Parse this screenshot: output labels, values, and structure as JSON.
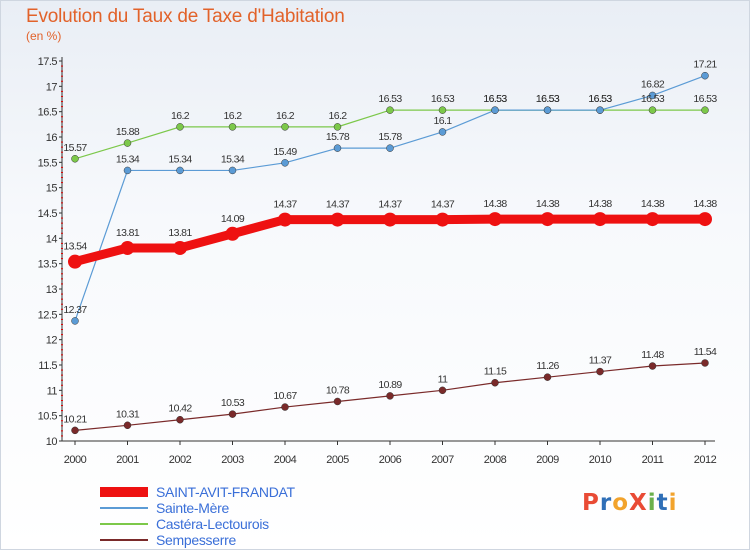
{
  "header": {
    "title": "Evolution du Taux de Taxe d'Habitation",
    "subtitle": "(en %)"
  },
  "logo": {
    "text": "ProXiti",
    "letter_colors": [
      "#e94b35",
      "#2f6fb7",
      "#f2a32c",
      "#e94b35",
      "#6ab04c",
      "#2f6fb7",
      "#f2a32c"
    ]
  },
  "chart_data": {
    "type": "line",
    "title": "Evolution du Taux de Taxe d'Habitation",
    "subtitle": "(en %)",
    "xlabel": "",
    "ylabel": "",
    "x": [
      "2000",
      "2001",
      "2002",
      "2003",
      "2004",
      "2005",
      "2006",
      "2007",
      "2008",
      "2009",
      "2010",
      "2011",
      "2012"
    ],
    "ylim": [
      10,
      17.5
    ],
    "yticks": [
      "10",
      "10.5",
      "11",
      "11.5",
      "12",
      "12.5",
      "13",
      "13.5",
      "14",
      "14.5",
      "15",
      "15.5",
      "16",
      "16.5",
      "17",
      "17.5"
    ],
    "grid": false,
    "legend_position": "bottom-left",
    "series": [
      {
        "name": "SAINT-AVIT-FRANDAT",
        "color": "#ee1111",
        "values": [
          13.54,
          13.81,
          13.81,
          14.09,
          14.37,
          14.37,
          14.37,
          14.37,
          14.38,
          14.38,
          14.38,
          14.38,
          14.38
        ],
        "labels": [
          "13.54",
          "13.81",
          "13.81",
          "14.09",
          "14.37",
          "14.37",
          "14.37",
          "14.37",
          "14.38",
          "14.38",
          "14.38",
          "14.38",
          "14.38"
        ]
      },
      {
        "name": "Sainte-Mère",
        "color": "#5b9bd5",
        "values": [
          12.37,
          15.34,
          15.34,
          15.34,
          15.49,
          15.78,
          15.78,
          16.1,
          16.53,
          16.53,
          16.53,
          16.82,
          17.21
        ],
        "labels": [
          "12.37",
          "15.34",
          "15.34",
          "15.34",
          "15.49",
          "15.78",
          "15.78",
          "16.1",
          "16.53",
          "16.53",
          "16.53",
          "16.82",
          "17.21"
        ]
      },
      {
        "name": "Castéra-Lectourois",
        "color": "#7cc84a",
        "values": [
          15.57,
          15.88,
          16.2,
          16.2,
          16.2,
          16.2,
          16.53,
          16.53,
          16.53,
          16.53,
          16.53,
          16.53,
          16.53
        ],
        "labels": [
          "15.57",
          "15.88",
          "16.2",
          "16.2",
          "16.2",
          "16.2",
          "16.53",
          "16.53",
          "16.53",
          "16.53",
          "16.53",
          "16.53",
          "16.53"
        ]
      },
      {
        "name": "Sempesserre",
        "color": "#7a2a2a",
        "values": [
          10.21,
          10.31,
          10.42,
          10.53,
          10.67,
          10.78,
          10.89,
          11,
          11.15,
          11.26,
          11.37,
          11.48,
          11.54
        ],
        "labels": [
          "10.21",
          "10.31",
          "10.42",
          "10.53",
          "10.67",
          "10.78",
          "10.89",
          "11",
          "11.15",
          "11.26",
          "11.37",
          "11.48",
          "11.54"
        ]
      }
    ]
  }
}
